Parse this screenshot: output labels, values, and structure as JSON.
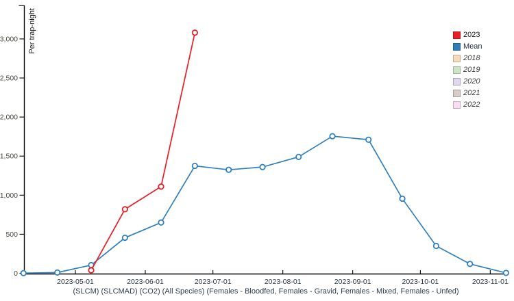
{
  "chart_data": {
    "type": "line",
    "title": "",
    "ylabel": "Per trap-night",
    "xlabel": "(SLCM) (SLCMAD) (CO2) (All Species) (Females - Bloodfed, Females - Gravid, Females - Mixed, Females - Unfed)",
    "grid": false,
    "legend_position": "top-right",
    "ylim": [
      0,
      3430
    ],
    "yticks": [
      0,
      500,
      1000,
      1500,
      2000,
      2500,
      3000
    ],
    "xticks": [
      "2023-05-01",
      "2023-06-01",
      "2023-07-01",
      "2023-08-01",
      "2023-09-01",
      "2023-10-01",
      "2023-11-01"
    ],
    "series": [
      {
        "name": "Mean",
        "color": "#3080bd",
        "x": [
          "2023-04-08",
          "2023-04-23",
          "2023-05-08",
          "2023-05-23",
          "2023-06-08",
          "2023-06-23",
          "2023-07-08",
          "2023-07-23",
          "2023-08-08",
          "2023-08-23",
          "2023-09-08",
          "2023-09-23",
          "2023-10-08",
          "2023-10-23",
          "2023-11-08"
        ],
        "values": [
          2,
          10,
          105,
          455,
          650,
          1375,
          1325,
          1360,
          1490,
          1755,
          1710,
          955,
          350,
          120,
          5
        ]
      },
      {
        "name": "2023",
        "color": "#ec1c24",
        "x": [
          "2023-05-08",
          "2023-05-23",
          "2023-06-08",
          "2023-06-23"
        ],
        "values": [
          38,
          820,
          1110,
          3080
        ]
      }
    ],
    "legend": [
      {
        "label": "2023",
        "swatch": "#ec1c24",
        "text_color": "#151515",
        "italic": false
      },
      {
        "label": "Mean",
        "swatch": "#2d7bb8",
        "text_color": "#1b2a3a",
        "italic": false
      },
      {
        "label": "2018",
        "swatch": "#f8dcba",
        "text_color": "#3d3d3d",
        "italic": true
      },
      {
        "label": "2019",
        "swatch": "#cbe6c6",
        "text_color": "#3d3d3d",
        "italic": true
      },
      {
        "label": "2020",
        "swatch": "#ded7ee",
        "text_color": "#3d3d3d",
        "italic": true
      },
      {
        "label": "2021",
        "swatch": "#d7ccc7",
        "text_color": "#3d3d3d",
        "italic": true
      },
      {
        "label": "2022",
        "swatch": "#f8def0",
        "text_color": "#3d3d3d",
        "italic": true
      }
    ]
  }
}
